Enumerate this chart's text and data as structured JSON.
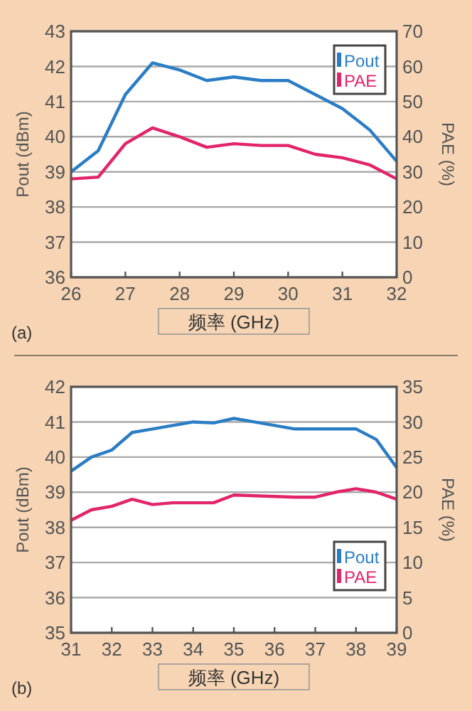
{
  "chart_data": [
    {
      "type": "line",
      "xlabel": "频率 (GHz)",
      "ylabel": "Pout (dBm)",
      "y2label": "PAE (%)",
      "annotations": [
        "(a)"
      ],
      "x": [
        26,
        26.5,
        27,
        27.5,
        28,
        28.5,
        29,
        29.5,
        30,
        30.5,
        31,
        31.5,
        32
      ],
      "xlim": [
        26,
        32
      ],
      "xticks": [
        26,
        27,
        28,
        29,
        30,
        31,
        32
      ],
      "ylim": [
        36,
        43
      ],
      "yticks": [
        36,
        37,
        38,
        39,
        40,
        41,
        42,
        43
      ],
      "y2lim": [
        0,
        70
      ],
      "y2ticks": [
        0,
        10,
        20,
        30,
        40,
        50,
        60,
        70
      ],
      "grid": "y",
      "legend": "top right",
      "series": [
        {
          "name": "Pout",
          "color": "#2a7dc5",
          "values": [
            39.0,
            39.6,
            41.2,
            42.1,
            41.9,
            41.6,
            41.7,
            41.6,
            41.6,
            41.2,
            40.8,
            40.2,
            39.3
          ]
        },
        {
          "name": "PAE",
          "color": "#e2246b",
          "axis": "y2",
          "values": [
            28,
            28.5,
            38,
            42.5,
            40,
            37,
            38,
            37.5,
            37.5,
            35,
            34,
            32,
            28
          ]
        }
      ]
    },
    {
      "type": "line",
      "xlabel": "频率 (GHz)",
      "ylabel": "Pout (dBm)",
      "y2label": "PAE (%)",
      "annotations": [
        "(b)"
      ],
      "x": [
        31,
        31.5,
        32,
        32.5,
        33,
        33.5,
        34,
        34.5,
        35,
        35.5,
        36,
        36.5,
        37,
        37.5,
        38,
        38.5,
        39
      ],
      "xlim": [
        31,
        39
      ],
      "xticks": [
        31,
        32,
        33,
        34,
        35,
        36,
        37,
        38,
        39
      ],
      "ylim": [
        35,
        42
      ],
      "yticks": [
        35,
        36,
        37,
        38,
        39,
        40,
        41,
        42
      ],
      "y2lim": [
        0,
        35
      ],
      "y2ticks": [
        0,
        5,
        10,
        15,
        20,
        25,
        30,
        35
      ],
      "grid": "y",
      "legend": "bottom right",
      "series": [
        {
          "name": "Pout",
          "color": "#2a7dc5",
          "values": [
            39.6,
            40.0,
            40.2,
            40.7,
            40.8,
            40.9,
            41.0,
            40.97,
            41.1,
            41.0,
            40.9,
            40.8,
            40.8,
            40.8,
            40.8,
            40.5,
            39.7
          ]
        },
        {
          "name": "PAE",
          "color": "#e2246b",
          "axis": "y2",
          "values": [
            16,
            17.5,
            18,
            19,
            18.25,
            18.5,
            18.5,
            18.5,
            19.6,
            19.5,
            19.4,
            19.3,
            19.3,
            20,
            20.5,
            20,
            19
          ]
        }
      ]
    }
  ]
}
